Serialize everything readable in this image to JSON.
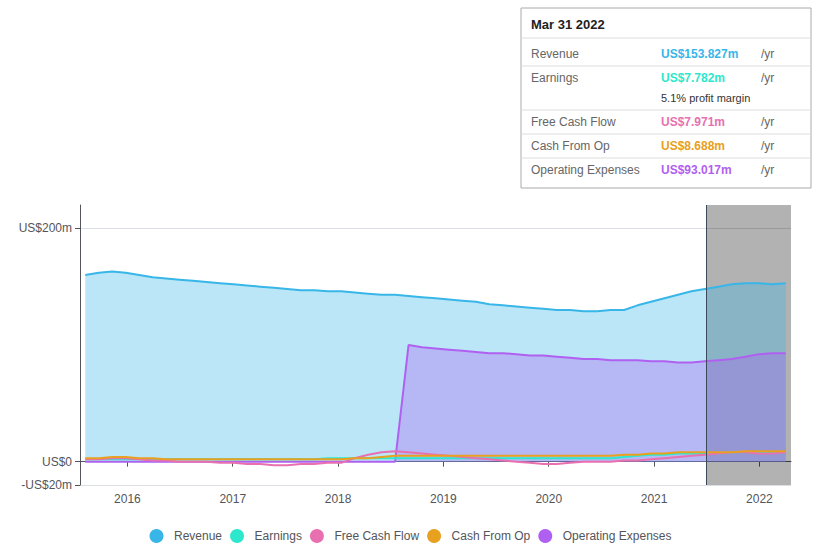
{
  "chart_data": {
    "type": "line",
    "x": [
      2015.6,
      2015.727885,
      2015.855769,
      2015.983654,
      2016.111538,
      2016.239423,
      2016.367308,
      2016.495192,
      2016.623077,
      2016.750962,
      2016.878846,
      2017.006731,
      2017.134615,
      2017.2625,
      2017.390385,
      2017.518269,
      2017.646154,
      2017.774038,
      2017.901923,
      2018.029808,
      2018.157692,
      2018.285577,
      2018.413462,
      2018.541346,
      2018.669231,
      2018.797115,
      2018.925,
      2019.052885,
      2019.180769,
      2019.308654,
      2019.436538,
      2019.564423,
      2019.692308,
      2019.820192,
      2019.948077,
      2020.075962,
      2020.203846,
      2020.331731,
      2020.459615,
      2020.5875,
      2020.715385,
      2020.843269,
      2020.971154,
      2021.099038,
      2021.226923,
      2021.354808,
      2021.482692,
      2021.610577,
      2021.738462,
      2021.866346,
      2021.994231,
      2022.122115,
      2022.25
    ],
    "series": [
      {
        "name": "Revenue",
        "type": "area",
        "color": "#38b6e8",
        "values": [
          160,
          162,
          163,
          162,
          160,
          158,
          157,
          156,
          155,
          154,
          153,
          152,
          151,
          150,
          149,
          148,
          147,
          147,
          146,
          146,
          145,
          144,
          143,
          143,
          142,
          141,
          140,
          139,
          138,
          137,
          135,
          134,
          133,
          132,
          131,
          130,
          130,
          129,
          129,
          130,
          130,
          134,
          137,
          140,
          143,
          146,
          148,
          150,
          152,
          153,
          153,
          152,
          153
        ]
      },
      {
        "name": "Earnings",
        "type": "line",
        "color": "#2de8cc",
        "values": [
          2,
          2,
          2,
          2,
          2,
          2,
          2,
          2,
          2,
          2,
          2,
          2,
          2,
          2,
          2,
          2,
          2,
          2,
          3,
          3,
          3,
          3,
          3,
          3,
          3,
          3,
          3,
          3,
          3,
          3,
          3,
          3,
          3,
          3,
          3,
          3,
          3,
          3,
          3,
          3,
          4,
          5,
          6,
          6,
          7,
          7,
          7,
          7,
          8,
          8,
          8,
          8,
          8
        ]
      },
      {
        "name": "Free Cash Flow",
        "type": "line",
        "color": "#e870b0",
        "values": [
          2,
          2,
          3,
          3,
          2,
          1,
          1,
          0,
          0,
          0,
          -1,
          -1,
          -2,
          -2,
          -3,
          -3,
          -2,
          -2,
          -1,
          -1,
          3,
          6,
          8,
          9,
          8,
          7,
          6,
          5,
          4,
          3,
          2,
          1,
          0,
          -1,
          -2,
          -2,
          -1,
          0,
          0,
          0,
          1,
          1,
          2,
          3,
          4,
          5,
          6,
          7,
          8,
          8,
          7,
          7,
          8
        ]
      },
      {
        "name": "Cash From Op",
        "type": "line",
        "color": "#e8a020",
        "values": [
          3,
          3,
          4,
          4,
          3,
          3,
          2,
          2,
          2,
          2,
          2,
          2,
          2,
          2,
          2,
          2,
          2,
          2,
          2,
          2,
          3,
          3,
          4,
          5,
          5,
          5,
          5,
          5,
          5,
          5,
          5,
          5,
          5,
          5,
          5,
          5,
          5,
          5,
          5,
          5,
          6,
          6,
          7,
          7,
          8,
          8,
          8,
          8,
          8,
          9,
          9,
          9,
          9
        ]
      },
      {
        "name": "Operating Expenses",
        "type": "area",
        "color": "#b060f0",
        "values": [
          0,
          0,
          0,
          0,
          0,
          0,
          0,
          0,
          0,
          0,
          0,
          0,
          0,
          0,
          0,
          0,
          0,
          0,
          0,
          0,
          0,
          0,
          0,
          0,
          100,
          98,
          97,
          96,
          95,
          94,
          93,
          93,
          92,
          91,
          91,
          90,
          89,
          88,
          88,
          87,
          87,
          87,
          86,
          86,
          85,
          85,
          86,
          87,
          88,
          90,
          92,
          93,
          93
        ]
      }
    ],
    "xlim": [
      2015.55,
      2022.3
    ],
    "xticks": [
      2016,
      2017,
      2018,
      2019,
      2020,
      2021,
      2022
    ],
    "ylim": [
      -20,
      220
    ],
    "yticks": [
      {
        "value": -20,
        "label": "-US$20m"
      },
      {
        "value": 0,
        "label": "US$0"
      },
      {
        "value": 200,
        "label": "US$200m"
      }
    ],
    "grid": true,
    "legend": "bottom",
    "highlight": {
      "from": 2021.5,
      "color": "#000000"
    },
    "annotations": {
      "title": "Mar 31 2022",
      "suffix": "/yr",
      "rows": [
        {
          "label": "Revenue",
          "value": "US$153.827m"
        },
        {
          "label": "Earnings",
          "value": "US$7.782m",
          "note": "5.1% profit margin"
        },
        {
          "label": "Free Cash Flow",
          "value": "US$7.971m"
        },
        {
          "label": "Cash From Op",
          "value": "US$8.688m"
        },
        {
          "label": "Operating Expenses",
          "value": "US$93.017m"
        }
      ]
    }
  }
}
